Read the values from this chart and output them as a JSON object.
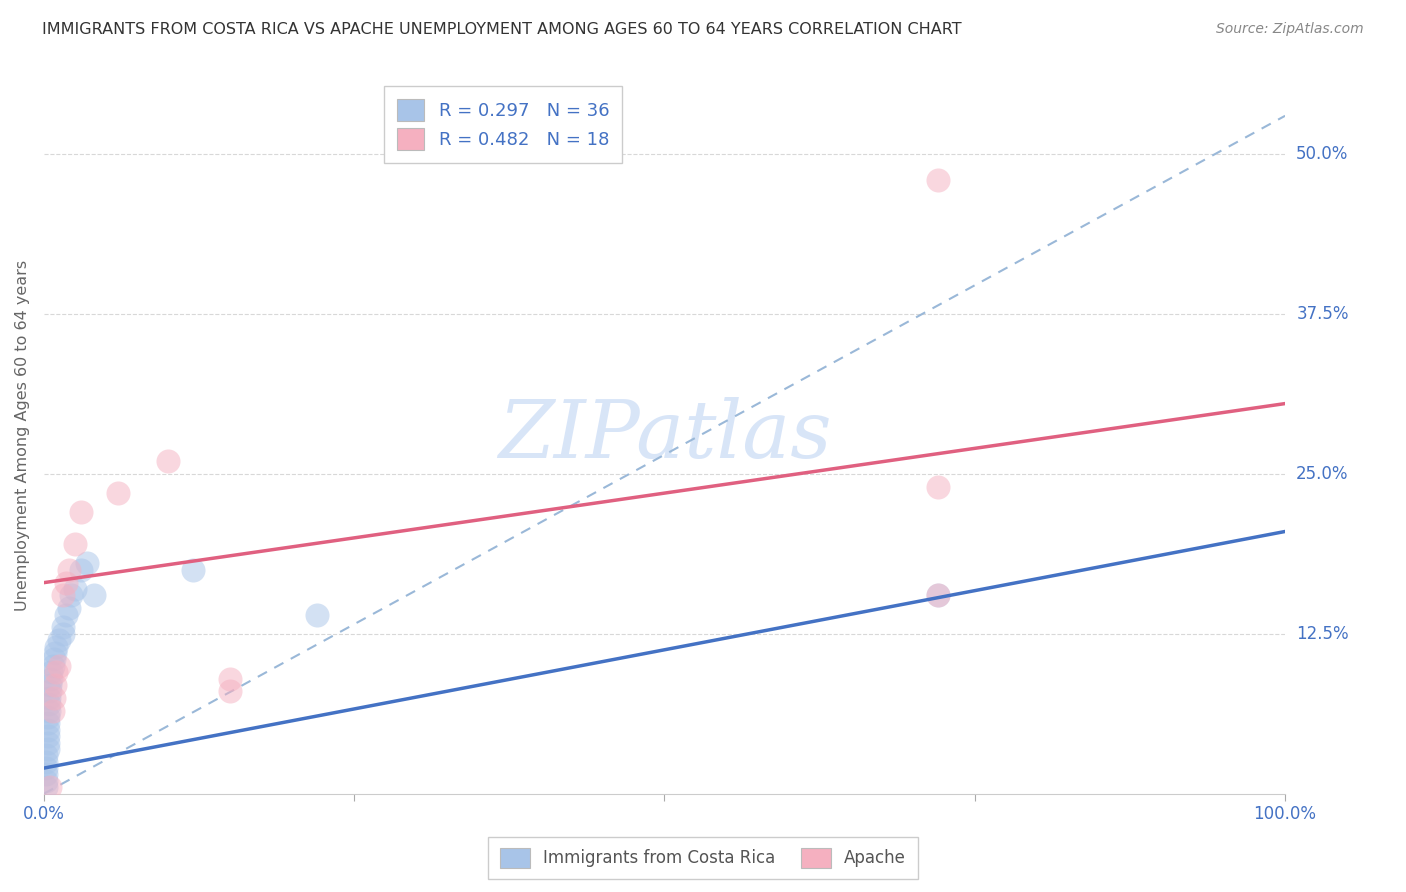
{
  "title": "IMMIGRANTS FROM COSTA RICA VS APACHE UNEMPLOYMENT AMONG AGES 60 TO 64 YEARS CORRELATION CHART",
  "source": "Source: ZipAtlas.com",
  "ylabel": "Unemployment Among Ages 60 to 64 years",
  "xlim": [
    0,
    1.0
  ],
  "ylim": [
    0,
    0.56
  ],
  "xtick_positions": [
    0.0,
    0.25,
    0.5,
    0.75,
    1.0
  ],
  "xtick_labels": [
    "0.0%",
    "",
    "",
    "",
    "100.0%"
  ],
  "ytick_values": [
    0.125,
    0.25,
    0.375,
    0.5
  ],
  "ytick_labels": [
    "12.5%",
    "25.0%",
    "37.5%",
    "50.0%"
  ],
  "R_blue": 0.297,
  "N_blue": 36,
  "R_pink": 0.482,
  "N_pink": 18,
  "legend_label_blue": "Immigrants from Costa Rica",
  "legend_label_pink": "Apache",
  "blue_scatter_color": "#a8c4e8",
  "pink_scatter_color": "#f5b0c0",
  "blue_line_color": "#4472c4",
  "pink_line_color": "#e06080",
  "dashed_line_color": "#9ab8d8",
  "watermark_text": "ZIPatlas",
  "watermark_color": "#c8daf5",
  "grid_color": "#d8d8d8",
  "title_color": "#333333",
  "source_color": "#888888",
  "axis_label_color": "#666666",
  "tick_label_color": "#4472c4",
  "legend_text_color": "#4472c4",
  "bottom_legend_text_color": "#555555",
  "blue_dots": [
    [
      0.002,
      0.005
    ],
    [
      0.002,
      0.01
    ],
    [
      0.002,
      0.015
    ],
    [
      0.002,
      0.02
    ],
    [
      0.002,
      0.025
    ],
    [
      0.002,
      0.03
    ],
    [
      0.003,
      0.035
    ],
    [
      0.003,
      0.04
    ],
    [
      0.003,
      0.045
    ],
    [
      0.003,
      0.05
    ],
    [
      0.003,
      0.055
    ],
    [
      0.003,
      0.06
    ],
    [
      0.004,
      0.065
    ],
    [
      0.004,
      0.07
    ],
    [
      0.004,
      0.075
    ],
    [
      0.005,
      0.08
    ],
    [
      0.005,
      0.085
    ],
    [
      0.006,
      0.09
    ],
    [
      0.006,
      0.095
    ],
    [
      0.007,
      0.1
    ],
    [
      0.008,
      0.105
    ],
    [
      0.009,
      0.11
    ],
    [
      0.01,
      0.115
    ],
    [
      0.012,
      0.12
    ],
    [
      0.015,
      0.125
    ],
    [
      0.015,
      0.13
    ],
    [
      0.018,
      0.14
    ],
    [
      0.02,
      0.145
    ],
    [
      0.022,
      0.155
    ],
    [
      0.025,
      0.16
    ],
    [
      0.03,
      0.175
    ],
    [
      0.035,
      0.18
    ],
    [
      0.22,
      0.14
    ],
    [
      0.04,
      0.155
    ],
    [
      0.72,
      0.155
    ],
    [
      0.12,
      0.175
    ]
  ],
  "pink_dots": [
    [
      0.005,
      0.005
    ],
    [
      0.007,
      0.065
    ],
    [
      0.008,
      0.075
    ],
    [
      0.009,
      0.085
    ],
    [
      0.01,
      0.095
    ],
    [
      0.012,
      0.1
    ],
    [
      0.015,
      0.155
    ],
    [
      0.018,
      0.165
    ],
    [
      0.02,
      0.175
    ],
    [
      0.025,
      0.195
    ],
    [
      0.03,
      0.22
    ],
    [
      0.06,
      0.235
    ],
    [
      0.1,
      0.26
    ],
    [
      0.15,
      0.08
    ],
    [
      0.15,
      0.09
    ],
    [
      0.72,
      0.48
    ],
    [
      0.72,
      0.24
    ],
    [
      0.72,
      0.155
    ]
  ],
  "blue_line_x": [
    0.0,
    1.0
  ],
  "blue_line_y": [
    0.02,
    0.205
  ],
  "pink_line_x": [
    0.0,
    1.0
  ],
  "pink_line_y": [
    0.165,
    0.305
  ],
  "dash_line_x": [
    0.0,
    1.0
  ],
  "dash_line_y": [
    0.0,
    0.53
  ]
}
